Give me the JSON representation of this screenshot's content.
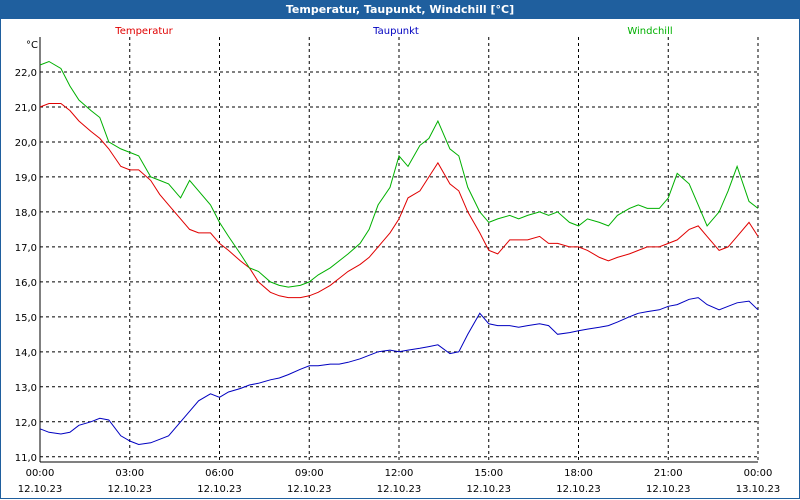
{
  "window": {
    "title": "Temperatur, Taupunkt, Windchill [°C]"
  },
  "chart_data": {
    "type": "line",
    "title": "Temperatur, Taupunkt, Windchill [°C]",
    "ylabel": "°C",
    "xlabel": "",
    "ylim": [
      10.85,
      23.0
    ],
    "xlim": [
      0,
      24
    ],
    "grid": true,
    "legend_position": "top",
    "y_ticks": [
      11.0,
      12.0,
      13.0,
      14.0,
      15.0,
      16.0,
      17.0,
      18.0,
      19.0,
      20.0,
      21.0,
      22.0
    ],
    "y_tick_labels": [
      "11,0",
      "12,0",
      "13,0",
      "14,0",
      "15,0",
      "16,0",
      "17,0",
      "18,0",
      "19,0",
      "20,0",
      "21,0",
      "22,0"
    ],
    "x_ticks": [
      {
        "hour": 0,
        "time": "00:00",
        "date": "12.10.23"
      },
      {
        "hour": 3,
        "time": "03:00",
        "date": "12.10.23"
      },
      {
        "hour": 6,
        "time": "06:00",
        "date": "12.10.23"
      },
      {
        "hour": 9,
        "time": "09:00",
        "date": "12.10.23"
      },
      {
        "hour": 12,
        "time": "12:00",
        "date": "12.10.23"
      },
      {
        "hour": 15,
        "time": "15:00",
        "date": "12.10.23"
      },
      {
        "hour": 18,
        "time": "18:00",
        "date": "12.10.23"
      },
      {
        "hour": 21,
        "time": "21:00",
        "date": "12.10.23"
      },
      {
        "hour": 24,
        "time": "00:00",
        "date": "13.10.23"
      }
    ],
    "series": [
      {
        "name": "Temperatur",
        "color": "#e00000",
        "x": [
          0,
          0.3,
          0.7,
          1.0,
          1.3,
          1.7,
          2.0,
          2.3,
          2.7,
          3.0,
          3.3,
          3.7,
          4.0,
          4.3,
          4.7,
          5.0,
          5.3,
          5.7,
          6.0,
          6.3,
          6.7,
          7.0,
          7.3,
          7.7,
          8.0,
          8.3,
          8.7,
          9.0,
          9.3,
          9.7,
          10.0,
          10.3,
          10.7,
          11.0,
          11.3,
          11.7,
          12.0,
          12.3,
          12.7,
          13.0,
          13.3,
          13.7,
          14.0,
          14.3,
          14.7,
          15.0,
          15.3,
          15.7,
          16.0,
          16.3,
          16.7,
          17.0,
          17.3,
          17.7,
          18.0,
          18.3,
          18.7,
          19.0,
          19.3,
          19.7,
          20.0,
          20.3,
          20.7,
          21.0,
          21.3,
          21.7,
          22.0,
          22.3,
          22.7,
          23.0,
          23.3,
          23.7,
          24.0
        ],
        "values": [
          21.0,
          21.1,
          21.1,
          20.9,
          20.6,
          20.3,
          20.1,
          19.8,
          19.3,
          19.2,
          19.2,
          18.9,
          18.5,
          18.2,
          17.8,
          17.5,
          17.4,
          17.4,
          17.1,
          16.9,
          16.6,
          16.4,
          16.0,
          15.7,
          15.6,
          15.55,
          15.55,
          15.6,
          15.7,
          15.9,
          16.1,
          16.3,
          16.5,
          16.7,
          17.0,
          17.4,
          17.8,
          18.4,
          18.6,
          19.0,
          19.4,
          18.8,
          18.6,
          18.0,
          17.4,
          16.9,
          16.8,
          17.2,
          17.2,
          17.2,
          17.3,
          17.1,
          17.1,
          17.0,
          17.0,
          16.9,
          16.7,
          16.6,
          16.7,
          16.8,
          16.9,
          17.0,
          17.0,
          17.1,
          17.2,
          17.5,
          17.6,
          17.3,
          16.9,
          17.0,
          17.3,
          17.7,
          17.3
        ]
      },
      {
        "name": "Taupunkt",
        "color": "#0000c0",
        "x": [
          0,
          0.3,
          0.7,
          1.0,
          1.3,
          1.7,
          2.0,
          2.3,
          2.7,
          3.0,
          3.3,
          3.7,
          4.0,
          4.3,
          4.7,
          5.0,
          5.3,
          5.7,
          6.0,
          6.3,
          6.7,
          7.0,
          7.3,
          7.7,
          8.0,
          8.3,
          8.7,
          9.0,
          9.3,
          9.7,
          10.0,
          10.3,
          10.7,
          11.0,
          11.3,
          11.7,
          12.0,
          12.3,
          12.7,
          13.0,
          13.3,
          13.7,
          14.0,
          14.3,
          14.7,
          15.0,
          15.3,
          15.7,
          16.0,
          16.3,
          16.7,
          17.0,
          17.3,
          17.7,
          18.0,
          18.3,
          18.7,
          19.0,
          19.3,
          19.7,
          20.0,
          20.3,
          20.7,
          21.0,
          21.3,
          21.7,
          22.0,
          22.3,
          22.7,
          23.0,
          23.3,
          23.7,
          24.0
        ],
        "values": [
          11.8,
          11.7,
          11.65,
          11.7,
          11.9,
          12.0,
          12.1,
          12.05,
          11.6,
          11.45,
          11.35,
          11.4,
          11.5,
          11.6,
          12.0,
          12.3,
          12.6,
          12.8,
          12.7,
          12.85,
          12.95,
          13.05,
          13.1,
          13.2,
          13.25,
          13.35,
          13.5,
          13.6,
          13.6,
          13.65,
          13.65,
          13.7,
          13.8,
          13.9,
          14.0,
          14.05,
          14.0,
          14.05,
          14.1,
          14.15,
          14.2,
          13.95,
          14.0,
          14.5,
          15.1,
          14.8,
          14.75,
          14.75,
          14.7,
          14.75,
          14.8,
          14.75,
          14.5,
          14.55,
          14.6,
          14.65,
          14.7,
          14.75,
          14.85,
          15.0,
          15.1,
          15.15,
          15.2,
          15.3,
          15.35,
          15.5,
          15.55,
          15.35,
          15.2,
          15.3,
          15.4,
          15.45,
          15.2
        ]
      },
      {
        "name": "Windchill",
        "color": "#00b000",
        "x": [
          0,
          0.3,
          0.7,
          1.0,
          1.3,
          1.7,
          2.0,
          2.3,
          2.7,
          3.0,
          3.3,
          3.7,
          4.0,
          4.3,
          4.7,
          5.0,
          5.3,
          5.7,
          6.0,
          6.3,
          6.7,
          7.0,
          7.3,
          7.7,
          8.0,
          8.3,
          8.7,
          9.0,
          9.3,
          9.7,
          10.0,
          10.3,
          10.7,
          11.0,
          11.3,
          11.7,
          12.0,
          12.3,
          12.7,
          13.0,
          13.3,
          13.7,
          14.0,
          14.3,
          14.7,
          15.0,
          15.3,
          15.7,
          16.0,
          16.3,
          16.7,
          17.0,
          17.3,
          17.7,
          18.0,
          18.3,
          18.7,
          19.0,
          19.3,
          19.7,
          20.0,
          20.3,
          20.7,
          21.0,
          21.3,
          21.7,
          22.0,
          22.3,
          22.7,
          23.0,
          23.3,
          23.7,
          24.0
        ],
        "values": [
          22.2,
          22.3,
          22.1,
          21.6,
          21.2,
          20.9,
          20.7,
          20.0,
          19.8,
          19.7,
          19.6,
          19.0,
          18.9,
          18.8,
          18.4,
          18.9,
          18.6,
          18.2,
          17.7,
          17.3,
          16.8,
          16.4,
          16.3,
          16.0,
          15.9,
          15.85,
          15.9,
          16.0,
          16.2,
          16.4,
          16.6,
          16.8,
          17.1,
          17.5,
          18.2,
          18.7,
          19.6,
          19.3,
          19.9,
          20.1,
          20.6,
          19.8,
          19.6,
          18.7,
          18.0,
          17.7,
          17.8,
          17.9,
          17.8,
          17.9,
          18.0,
          17.9,
          18.0,
          17.7,
          17.6,
          17.8,
          17.7,
          17.6,
          17.9,
          18.1,
          18.2,
          18.1,
          18.1,
          18.4,
          19.1,
          18.8,
          18.2,
          17.6,
          18.0,
          18.6,
          19.3,
          18.3,
          18.1
        ]
      }
    ]
  }
}
